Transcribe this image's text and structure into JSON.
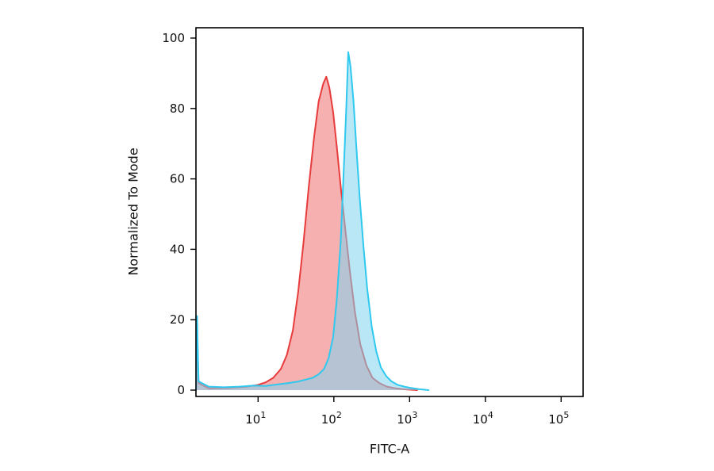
{
  "figure": {
    "background_color": "#ffffff",
    "frame_color": "#000000"
  },
  "chart_data": {
    "type": "area",
    "subtype": "flow-cytometry-histogram",
    "title": "",
    "xlabel": "FITC-A",
    "ylabel": "Normalized To Mode",
    "x_scale": "log10",
    "x_range_log10": [
      0.18,
      5.29
    ],
    "ylim": [
      0,
      100
    ],
    "x_ticks_log10": [
      1,
      2,
      3,
      4,
      5
    ],
    "x_tick_base": "10",
    "y_ticks": [
      0,
      20,
      40,
      60,
      80,
      100
    ],
    "grid": false,
    "legend": null,
    "series": [
      {
        "name": "red-histogram",
        "color": "#e83b3b",
        "fill": "#f08080",
        "fill_opacity": 0.62,
        "peak": {
          "x_log10": 1.9,
          "y": 89
        },
        "points": [
          [
            0.18,
            0
          ],
          [
            0.195,
            17
          ],
          [
            0.215,
            2
          ],
          [
            0.35,
            0.5
          ],
          [
            0.6,
            0.6
          ],
          [
            0.85,
            1.0
          ],
          [
            1.0,
            1.5
          ],
          [
            1.1,
            2.2
          ],
          [
            1.2,
            3.5
          ],
          [
            1.3,
            6
          ],
          [
            1.38,
            10
          ],
          [
            1.46,
            17
          ],
          [
            1.53,
            28
          ],
          [
            1.6,
            42
          ],
          [
            1.67,
            58
          ],
          [
            1.74,
            72
          ],
          [
            1.8,
            82
          ],
          [
            1.86,
            87
          ],
          [
            1.9,
            89
          ],
          [
            1.94,
            86
          ],
          [
            1.99,
            79
          ],
          [
            2.04,
            69
          ],
          [
            2.09,
            58
          ],
          [
            2.15,
            46
          ],
          [
            2.21,
            34
          ],
          [
            2.28,
            22
          ],
          [
            2.35,
            13
          ],
          [
            2.43,
            7
          ],
          [
            2.51,
            3.5
          ],
          [
            2.6,
            2
          ],
          [
            2.7,
            1
          ],
          [
            2.82,
            0.5
          ],
          [
            2.95,
            0.2
          ],
          [
            3.1,
            0
          ]
        ]
      },
      {
        "name": "cyan-histogram",
        "color": "#2fc9ef",
        "fill": "#7fd4ee",
        "fill_opacity": 0.55,
        "peak": {
          "x_log10": 2.19,
          "y": 96
        },
        "points": [
          [
            0.18,
            0
          ],
          [
            0.195,
            21
          ],
          [
            0.215,
            2.5
          ],
          [
            0.35,
            1
          ],
          [
            0.55,
            0.8
          ],
          [
            0.75,
            1
          ],
          [
            0.95,
            1.3
          ],
          [
            1.1,
            1.2
          ],
          [
            1.25,
            1.6
          ],
          [
            1.4,
            2
          ],
          [
            1.52,
            2.4
          ],
          [
            1.63,
            3
          ],
          [
            1.72,
            3.5
          ],
          [
            1.8,
            4.5
          ],
          [
            1.87,
            6
          ],
          [
            1.93,
            9
          ],
          [
            1.99,
            15
          ],
          [
            2.04,
            26
          ],
          [
            2.09,
            42
          ],
          [
            2.13,
            62
          ],
          [
            2.16,
            78
          ],
          [
            2.19,
            96
          ],
          [
            2.22,
            92
          ],
          [
            2.26,
            82
          ],
          [
            2.3,
            68
          ],
          [
            2.34,
            55
          ],
          [
            2.39,
            41
          ],
          [
            2.44,
            29
          ],
          [
            2.5,
            18
          ],
          [
            2.56,
            11
          ],
          [
            2.62,
            6.5
          ],
          [
            2.69,
            4
          ],
          [
            2.76,
            2.5
          ],
          [
            2.84,
            1.5
          ],
          [
            2.93,
            1
          ],
          [
            3.02,
            0.6
          ],
          [
            3.12,
            0.3
          ],
          [
            3.25,
            0
          ]
        ]
      }
    ]
  }
}
